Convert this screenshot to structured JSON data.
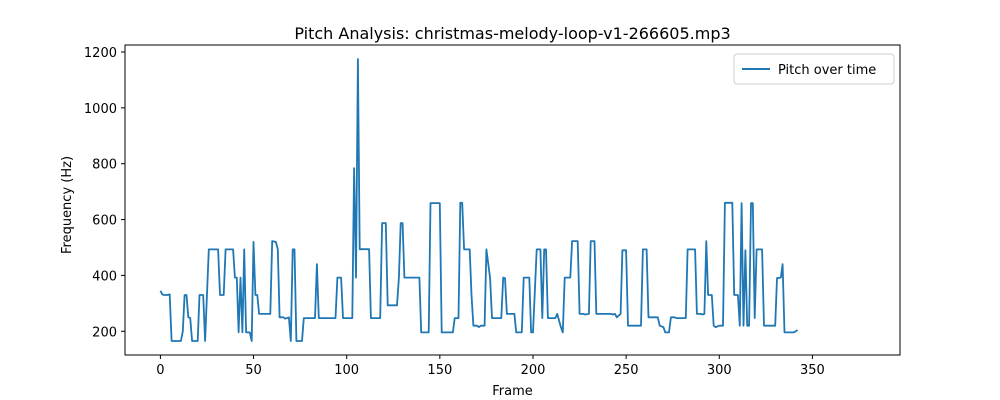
{
  "chart_data": {
    "type": "line",
    "title": "Pitch Analysis: christmas-melody-loop-v1-266605.mp3",
    "xlabel": "Frame",
    "ylabel": "Frequency (Hz)",
    "xlim": [
      -19,
      397
    ],
    "ylim": [
      115,
      1225
    ],
    "xticks": [
      0,
      50,
      100,
      150,
      200,
      250,
      300,
      350
    ],
    "yticks": [
      200,
      400,
      600,
      800,
      1000,
      1200
    ],
    "grid": false,
    "legend": "upper-right",
    "colors": {
      "series": "#1f77b4"
    },
    "series": [
      {
        "name": "Pitch over time",
        "points": [
          [
            0,
            345
          ],
          [
            1,
            332
          ],
          [
            2,
            330
          ],
          [
            4,
            330
          ],
          [
            5,
            332
          ],
          [
            6,
            165
          ],
          [
            11,
            165
          ],
          [
            12,
            200
          ],
          [
            13,
            330
          ],
          [
            14,
            330
          ],
          [
            15,
            250
          ],
          [
            16,
            248
          ],
          [
            17,
            165
          ],
          [
            20,
            165
          ],
          [
            21,
            330
          ],
          [
            23,
            330
          ],
          [
            24,
            165
          ],
          [
            26,
            493
          ],
          [
            31,
            493
          ],
          [
            32,
            330
          ],
          [
            34,
            330
          ],
          [
            35,
            493
          ],
          [
            39,
            493
          ],
          [
            40,
            392
          ],
          [
            41,
            392
          ],
          [
            42,
            196
          ],
          [
            43,
            392
          ],
          [
            44,
            196
          ],
          [
            45,
            493
          ],
          [
            46,
            196
          ],
          [
            48,
            196
          ],
          [
            49,
            165
          ],
          [
            50,
            520
          ],
          [
            51,
            330
          ],
          [
            52,
            330
          ],
          [
            53,
            262
          ],
          [
            59,
            262
          ],
          [
            60,
            523
          ],
          [
            62,
            520
          ],
          [
            63,
            493
          ],
          [
            64,
            250
          ],
          [
            66,
            250
          ],
          [
            67,
            245
          ],
          [
            69,
            250
          ],
          [
            70,
            165
          ],
          [
            71,
            493
          ],
          [
            72,
            493
          ],
          [
            73,
            165
          ],
          [
            76,
            165
          ],
          [
            77,
            247
          ],
          [
            83,
            247
          ],
          [
            84,
            440
          ],
          [
            85,
            247
          ],
          [
            94,
            247
          ],
          [
            95,
            392
          ],
          [
            97,
            392
          ],
          [
            98,
            247
          ],
          [
            103,
            247
          ],
          [
            104,
            784
          ],
          [
            105,
            392
          ],
          [
            106,
            1175
          ],
          [
            107,
            494
          ],
          [
            112,
            494
          ],
          [
            113,
            247
          ],
          [
            118,
            247
          ],
          [
            119,
            587
          ],
          [
            121,
            587
          ],
          [
            122,
            293
          ],
          [
            127,
            293
          ],
          [
            128,
            392
          ],
          [
            129,
            587
          ],
          [
            130,
            587
          ],
          [
            131,
            392
          ],
          [
            138,
            392
          ],
          [
            139,
            392
          ],
          [
            140,
            196
          ],
          [
            144,
            196
          ],
          [
            145,
            659
          ],
          [
            150,
            659
          ],
          [
            151,
            196
          ],
          [
            157,
            196
          ],
          [
            158,
            247
          ],
          [
            160,
            247
          ],
          [
            161,
            660
          ],
          [
            162,
            660
          ],
          [
            163,
            493
          ],
          [
            166,
            493
          ],
          [
            167,
            330
          ],
          [
            168,
            220
          ],
          [
            170,
            220
          ],
          [
            171,
            215
          ],
          [
            172,
            220
          ],
          [
            174,
            220
          ],
          [
            175,
            493
          ],
          [
            176,
            440
          ],
          [
            177,
            390
          ],
          [
            178,
            247
          ],
          [
            183,
            247
          ],
          [
            184,
            392
          ],
          [
            185,
            390
          ],
          [
            186,
            262
          ],
          [
            190,
            262
          ],
          [
            191,
            196
          ],
          [
            194,
            196
          ],
          [
            195,
            392
          ],
          [
            198,
            392
          ],
          [
            199,
            196
          ],
          [
            200,
            196
          ],
          [
            202,
            493
          ],
          [
            204,
            493
          ],
          [
            205,
            247
          ],
          [
            206,
            493
          ],
          [
            207,
            493
          ],
          [
            208,
            247
          ],
          [
            212,
            247
          ],
          [
            213,
            262
          ],
          [
            215,
            215
          ],
          [
            216,
            196
          ],
          [
            217,
            392
          ],
          [
            220,
            392
          ],
          [
            221,
            523
          ],
          [
            224,
            523
          ],
          [
            225,
            262
          ],
          [
            227,
            262
          ],
          [
            228,
            260
          ],
          [
            230,
            262
          ],
          [
            231,
            523
          ],
          [
            233,
            523
          ],
          [
            234,
            262
          ],
          [
            241,
            262
          ],
          [
            242,
            262
          ],
          [
            243,
            260
          ],
          [
            244,
            262
          ],
          [
            245,
            250
          ],
          [
            247,
            262
          ],
          [
            248,
            490
          ],
          [
            250,
            490
          ],
          [
            251,
            220
          ],
          [
            258,
            220
          ],
          [
            259,
            493
          ],
          [
            261,
            493
          ],
          [
            262,
            250
          ],
          [
            267,
            250
          ],
          [
            268,
            220
          ],
          [
            270,
            215
          ],
          [
            271,
            196
          ],
          [
            273,
            196
          ],
          [
            274,
            250
          ],
          [
            276,
            250
          ],
          [
            277,
            247
          ],
          [
            282,
            247
          ],
          [
            283,
            493
          ],
          [
            287,
            493
          ],
          [
            288,
            262
          ],
          [
            290,
            262
          ],
          [
            291,
            260
          ],
          [
            292,
            262
          ],
          [
            293,
            523
          ],
          [
            294,
            330
          ],
          [
            296,
            330
          ],
          [
            297,
            220
          ],
          [
            298,
            215
          ],
          [
            300,
            220
          ],
          [
            301,
            220
          ],
          [
            302,
            220
          ],
          [
            303,
            660
          ],
          [
            307,
            660
          ],
          [
            308,
            330
          ],
          [
            310,
            330
          ],
          [
            311,
            220
          ],
          [
            312,
            659
          ],
          [
            313,
            220
          ],
          [
            314,
            490
          ],
          [
            315,
            220
          ],
          [
            316,
            220
          ],
          [
            317,
            659
          ],
          [
            318,
            659
          ],
          [
            319,
            247
          ],
          [
            320,
            493
          ],
          [
            323,
            493
          ],
          [
            324,
            220
          ],
          [
            330,
            220
          ],
          [
            331,
            390
          ],
          [
            333,
            392
          ],
          [
            334,
            440
          ],
          [
            335,
            196
          ],
          [
            340,
            196
          ],
          [
            341,
            200
          ],
          [
            342,
            205
          ]
        ]
      }
    ]
  }
}
